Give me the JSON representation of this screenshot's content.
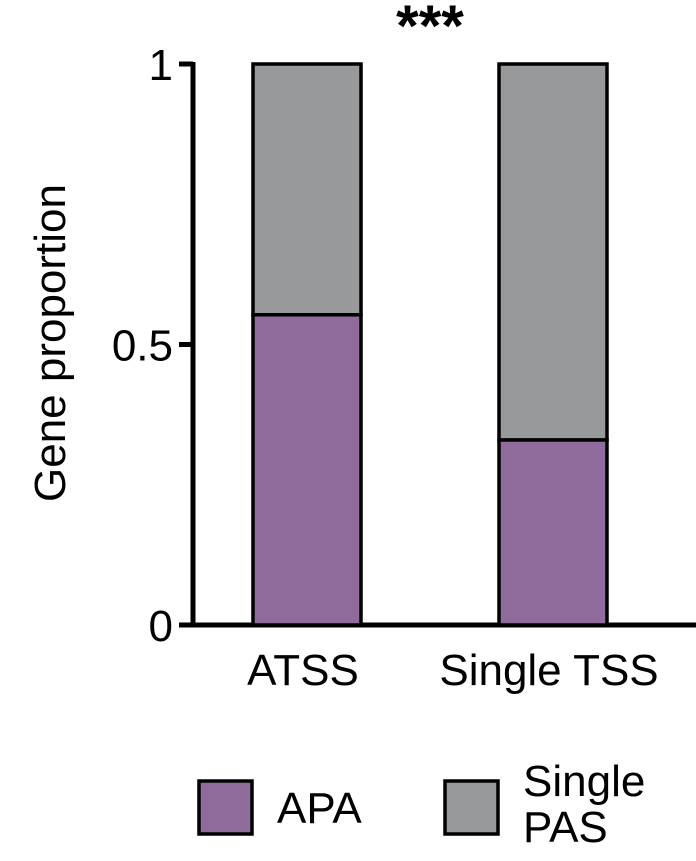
{
  "chart_data": {
    "type": "bar",
    "stacked": true,
    "title": "",
    "xlabel": "",
    "ylabel": "Gene proportion",
    "ylim": [
      0,
      1
    ],
    "yticks": [
      {
        "value": 0,
        "label": "0"
      },
      {
        "value": 0.5,
        "label": "0.5"
      },
      {
        "value": 1,
        "label": "1"
      }
    ],
    "categories": [
      "ATSS",
      "Single TSS"
    ],
    "series": [
      {
        "name": "APA",
        "values": [
          0.553,
          0.33
        ],
        "color": "#8f6c9c"
      },
      {
        "name": "Single PAS",
        "values": [
          0.447,
          0.67
        ],
        "color": "#98999b"
      }
    ],
    "annotation": "***",
    "legend": {
      "position": "bottom",
      "items": [
        {
          "lines": [
            "APA"
          ],
          "color": "#8f6c9c"
        },
        {
          "lines": [
            "Single",
            "PAS"
          ],
          "color": "#98999b"
        }
      ]
    },
    "grid": false
  }
}
